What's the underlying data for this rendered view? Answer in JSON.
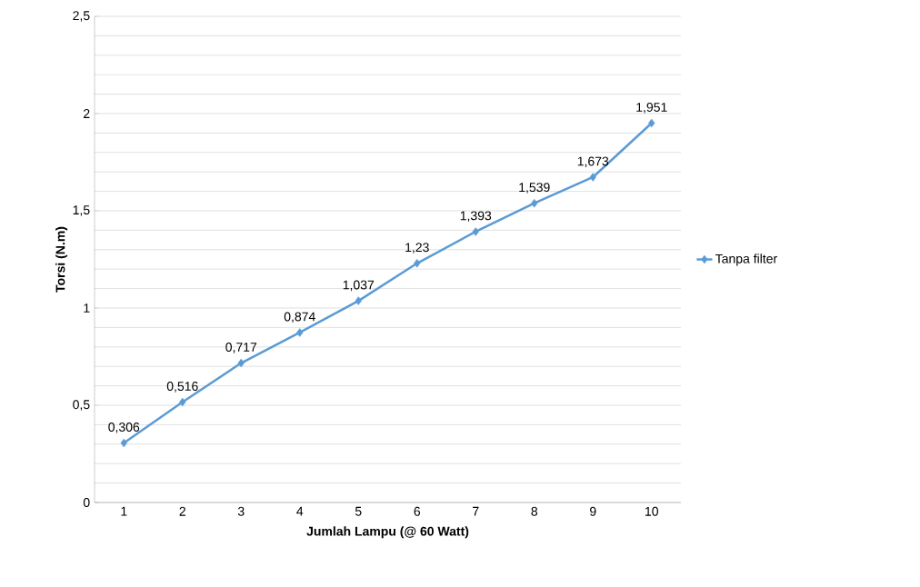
{
  "chart_data": {
    "type": "line",
    "xlabel": "Jumlah Lampu (@ 60 Watt)",
    "ylabel": "Torsi (N.m)",
    "categories": [
      "1",
      "2",
      "3",
      "4",
      "5",
      "6",
      "7",
      "8",
      "9",
      "10"
    ],
    "series": [
      {
        "name": "Tanpa filter",
        "color": "#5b9bd5",
        "values": [
          0.306,
          0.516,
          0.717,
          0.874,
          1.037,
          1.23,
          1.393,
          1.539,
          1.673,
          1.951
        ],
        "value_labels": [
          "0,306",
          "0,516",
          "0,717",
          "0,874",
          "1,037",
          "1,23",
          "1,393",
          "1,539",
          "1,673",
          "1,951"
        ]
      }
    ],
    "ylim": [
      0,
      2.5
    ],
    "yticks": [
      0,
      {
        "value": 0.5,
        "label": "0,5"
      },
      1,
      {
        "value": 1.5,
        "label": "1,5"
      },
      2,
      {
        "value": 2.5,
        "label": "2,5"
      }
    ],
    "grid": "y",
    "legend": "right",
    "marker": "diamond",
    "line_style": "solid"
  }
}
